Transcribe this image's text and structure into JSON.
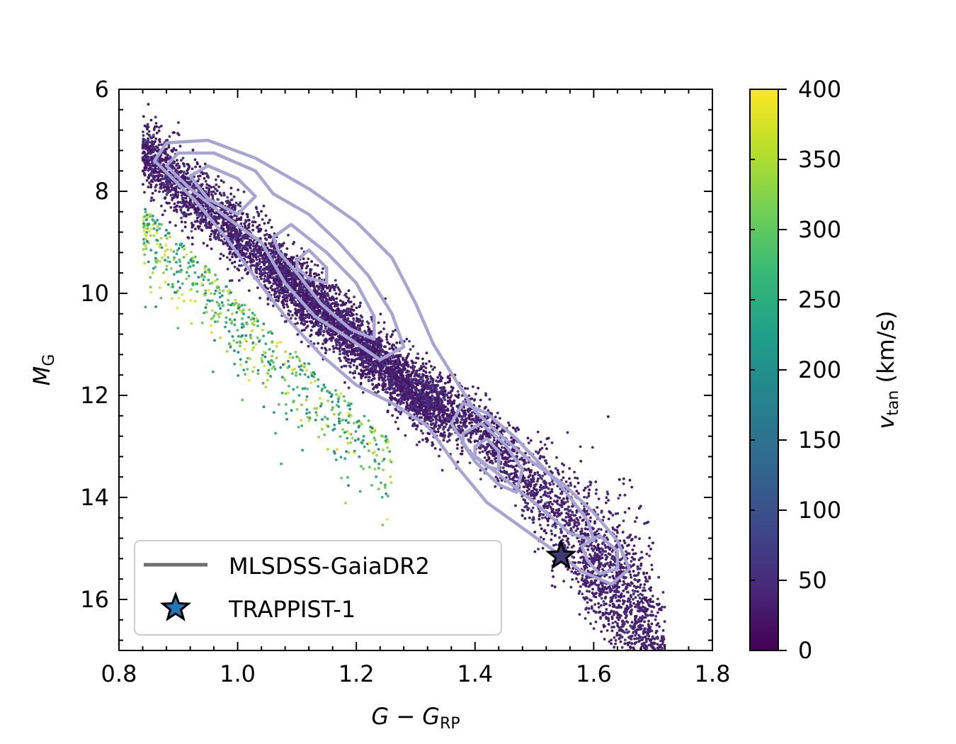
{
  "chart_data": {
    "type": "scatter",
    "title": "",
    "xlabel": {
      "main": "G − G",
      "sub": "RP"
    },
    "ylabel": {
      "main": "M",
      "sub": "G"
    },
    "xlim": [
      0.8,
      1.8
    ],
    "ylim": [
      17.0,
      6.0
    ],
    "y_inverted": true,
    "x_ticks": [
      0.8,
      1.0,
      1.2,
      1.4,
      1.6,
      1.8
    ],
    "x_tick_labels": [
      "0.8",
      "1.0",
      "1.2",
      "1.4",
      "1.6",
      "1.8"
    ],
    "y_ticks": [
      6,
      8,
      10,
      12,
      14,
      16
    ],
    "y_tick_labels": [
      "6",
      "8",
      "10",
      "12",
      "14",
      "16"
    ],
    "grid": false,
    "colorbar": {
      "label": {
        "main": "v",
        "sub": "tan",
        "unit": " (km/s)"
      },
      "range": [
        0,
        400
      ],
      "ticks": [
        0,
        50,
        100,
        150,
        200,
        250,
        300,
        350,
        400
      ],
      "tick_labels": [
        "0",
        "50",
        "100",
        "150",
        "200",
        "250",
        "300",
        "350",
        "400"
      ],
      "colormap": "viridis",
      "stops": [
        "#440154",
        "#482878",
        "#3e4989",
        "#31688e",
        "#26828e",
        "#1f9e89",
        "#35b779",
        "#6ece58",
        "#b5de2b",
        "#fde725"
      ]
    },
    "series": [
      {
        "name": "MLSDSS-GaiaDR2",
        "kind": "contour",
        "color": "#a8a4d4",
        "legend_color": "#6e6e6e",
        "levels": [
          [
            [
              0.86,
              7.4
            ],
            [
              0.88,
              7.05
            ],
            [
              0.95,
              7.0
            ],
            [
              1.03,
              7.35
            ],
            [
              1.12,
              7.95
            ],
            [
              1.2,
              8.6
            ],
            [
              1.26,
              9.3
            ],
            [
              1.3,
              10.2
            ],
            [
              1.33,
              11.0
            ],
            [
              1.37,
              11.75
            ],
            [
              1.4,
              12.3
            ],
            [
              1.44,
              12.75
            ],
            [
              1.49,
              13.25
            ],
            [
              1.55,
              13.75
            ],
            [
              1.6,
              14.3
            ],
            [
              1.64,
              14.85
            ],
            [
              1.66,
              15.4
            ],
            [
              1.63,
              15.7
            ],
            [
              1.58,
              15.45
            ],
            [
              1.54,
              15.1
            ],
            [
              1.48,
              14.6
            ],
            [
              1.42,
              14.1
            ],
            [
              1.37,
              13.4
            ],
            [
              1.32,
              12.6
            ],
            [
              1.26,
              12.15
            ],
            [
              1.2,
              11.8
            ],
            [
              1.14,
              11.2
            ],
            [
              1.08,
              10.45
            ],
            [
              1.03,
              9.7
            ],
            [
              0.98,
              8.9
            ],
            [
              0.93,
              8.2
            ]
          ],
          [
            [
              0.88,
              7.5
            ],
            [
              0.9,
              7.25
            ],
            [
              0.96,
              7.25
            ],
            [
              1.03,
              7.6
            ],
            [
              1.06,
              8.05
            ],
            [
              1.12,
              8.45
            ],
            [
              1.17,
              9.0
            ],
            [
              1.22,
              9.65
            ],
            [
              1.26,
              10.4
            ],
            [
              1.28,
              11.05
            ],
            [
              1.24,
              11.3
            ],
            [
              1.19,
              10.9
            ],
            [
              1.13,
              10.45
            ],
            [
              1.08,
              9.8
            ],
            [
              1.04,
              9.0
            ],
            [
              0.98,
              8.5
            ],
            [
              0.92,
              7.95
            ]
          ],
          [
            [
              0.92,
              7.7
            ],
            [
              0.95,
              7.5
            ],
            [
              1.0,
              7.75
            ],
            [
              1.03,
              8.1
            ],
            [
              1.0,
              8.45
            ],
            [
              0.95,
              8.15
            ]
          ],
          [
            [
              1.06,
              8.9
            ],
            [
              1.09,
              8.65
            ],
            [
              1.15,
              9.2
            ],
            [
              1.2,
              9.8
            ],
            [
              1.23,
              10.45
            ],
            [
              1.23,
              10.9
            ],
            [
              1.19,
              10.7
            ],
            [
              1.14,
              10.2
            ],
            [
              1.1,
              9.6
            ],
            [
              1.07,
              9.2
            ]
          ],
          [
            [
              1.1,
              9.35
            ],
            [
              1.12,
              9.15
            ],
            [
              1.15,
              9.5
            ],
            [
              1.15,
              9.8
            ],
            [
              1.12,
              9.7
            ],
            [
              1.1,
              9.5
            ]
          ],
          [
            [
              1.36,
              12.55
            ],
            [
              1.38,
              12.15
            ],
            [
              1.42,
              12.35
            ],
            [
              1.47,
              12.85
            ],
            [
              1.51,
              13.35
            ],
            [
              1.55,
              13.85
            ],
            [
              1.59,
              14.45
            ],
            [
              1.6,
              14.85
            ],
            [
              1.56,
              14.7
            ],
            [
              1.5,
              14.1
            ],
            [
              1.44,
              13.55
            ],
            [
              1.39,
              13.1
            ]
          ],
          [
            [
              1.38,
              12.75
            ],
            [
              1.41,
              12.55
            ],
            [
              1.45,
              12.95
            ],
            [
              1.48,
              13.45
            ],
            [
              1.47,
              13.9
            ],
            [
              1.44,
              13.75
            ],
            [
              1.4,
              13.3
            ],
            [
              1.38,
              12.95
            ]
          ],
          [
            [
              1.4,
              13.0
            ],
            [
              1.42,
              12.85
            ],
            [
              1.44,
              13.1
            ],
            [
              1.44,
              13.45
            ],
            [
              1.42,
              13.4
            ],
            [
              1.4,
              13.2
            ]
          ],
          [
            [
              1.58,
              14.95
            ],
            [
              1.61,
              14.75
            ],
            [
              1.64,
              15.05
            ],
            [
              1.64,
              15.4
            ],
            [
              1.61,
              15.5
            ],
            [
              1.59,
              15.25
            ]
          ]
        ]
      },
      {
        "name": "TRAPPIST-1",
        "kind": "marker",
        "marker": "star",
        "x": 1.545,
        "y": 15.15,
        "color": "#403a72",
        "legend_color": "#1f77b4"
      }
    ],
    "legend": {
      "placement": "lower-left"
    }
  }
}
